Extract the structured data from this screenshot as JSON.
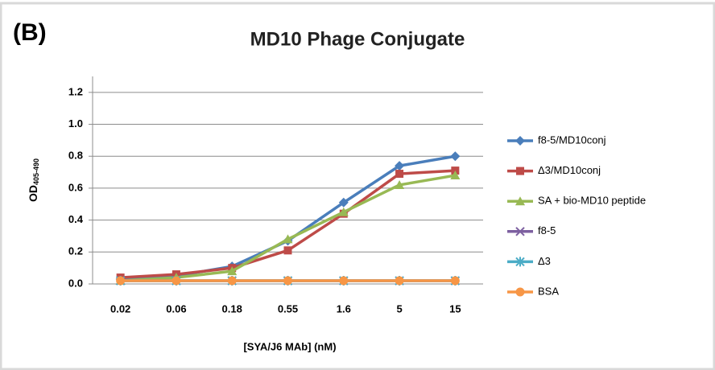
{
  "chart_data": {
    "type": "line",
    "panel_label": "(B)",
    "title": "MD10 Phage Conjugate",
    "xlabel": "[SYA/J6 MAb] (nM)",
    "ylabel": {
      "main": "OD",
      "sub": "405-490"
    },
    "categories": [
      "0.02",
      "0.06",
      "0.18",
      "0.55",
      "1.6",
      "5",
      "15"
    ],
    "ylim": [
      0,
      1.3
    ],
    "yticks": [
      {
        "value": 0,
        "label": "0.0"
      },
      0.2,
      0.4,
      0.6,
      0.8,
      {
        "value": 1,
        "label": "1.0"
      },
      1.2
    ],
    "grid": true,
    "legend": "right",
    "series": [
      {
        "name": "f8-5/MD10conj",
        "color": "#4a7ebb",
        "marker": "diamond",
        "values": [
          0.03,
          0.05,
          0.11,
          0.27,
          0.51,
          0.74,
          0.8
        ]
      },
      {
        "name": "Δ3/MD10conj",
        "color": "#be4b48",
        "marker": "square",
        "values": [
          0.04,
          0.06,
          0.1,
          0.21,
          0.44,
          0.69,
          0.71
        ]
      },
      {
        "name": "SA + bio-MD10 peptide",
        "color": "#98b954",
        "marker": "triangle",
        "values": [
          0.02,
          0.04,
          0.08,
          0.28,
          0.45,
          0.62,
          0.68
        ]
      },
      {
        "name": "f8-5",
        "color": "#7d60a0",
        "marker": "x",
        "values": [
          0.02,
          0.02,
          0.02,
          0.02,
          0.02,
          0.02,
          0.02
        ]
      },
      {
        "name": "Δ3",
        "color": "#4bacc6",
        "marker": "star",
        "values": [
          0.02,
          0.02,
          0.02,
          0.02,
          0.02,
          0.02,
          0.02
        ]
      },
      {
        "name": "BSA",
        "color": "#f79646",
        "marker": "circle",
        "values": [
          0.02,
          0.02,
          0.02,
          0.02,
          0.02,
          0.02,
          0.02
        ]
      }
    ]
  }
}
